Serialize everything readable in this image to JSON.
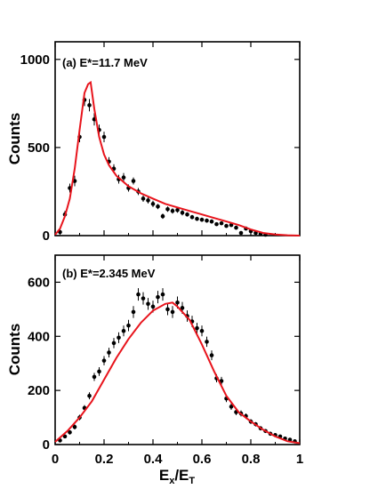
{
  "chart_data": [
    {
      "type": "scatter",
      "panel_label": "(a) E*=11.7 MeV",
      "ylabel": "Counts",
      "xlim": [
        0,
        1
      ],
      "ylim": [
        0,
        1100
      ],
      "xticks": [
        0,
        0.2,
        0.4,
        0.6,
        0.8,
        1
      ],
      "yticks": [
        0,
        500,
        1000
      ],
      "ytick_labels": [
        "0",
        "500",
        "1000"
      ],
      "series": [
        {
          "kind": "points",
          "color": "#000000",
          "x": [
            0.02,
            0.04,
            0.06,
            0.08,
            0.1,
            0.12,
            0.14,
            0.16,
            0.18,
            0.2,
            0.22,
            0.24,
            0.26,
            0.28,
            0.3,
            0.32,
            0.34,
            0.36,
            0.38,
            0.4,
            0.42,
            0.44,
            0.46,
            0.48,
            0.5,
            0.52,
            0.54,
            0.56,
            0.58,
            0.6,
            0.62,
            0.64,
            0.66,
            0.68,
            0.7,
            0.72,
            0.74,
            0.76,
            0.78,
            0.8,
            0.82,
            0.84,
            0.86
          ],
          "y": [
            20,
            120,
            270,
            310,
            560,
            770,
            740,
            660,
            600,
            560,
            420,
            380,
            320,
            330,
            270,
            310,
            250,
            210,
            200,
            180,
            165,
            110,
            150,
            140,
            145,
            130,
            120,
            105,
            95,
            90,
            85,
            80,
            65,
            70,
            55,
            60,
            45,
            15,
            40,
            25,
            15,
            10,
            5
          ],
          "err": [
            15,
            20,
            25,
            30,
            30,
            35,
            35,
            35,
            30,
            30,
            25,
            25,
            25,
            25,
            20,
            20,
            20,
            18,
            18,
            18,
            15,
            15,
            15,
            15,
            15,
            15,
            12,
            12,
            12,
            12,
            12,
            12,
            10,
            10,
            10,
            10,
            10,
            8,
            8,
            8,
            6,
            6,
            5
          ]
        },
        {
          "kind": "line",
          "color": "#e8141c",
          "x": [
            0.0,
            0.02,
            0.04,
            0.06,
            0.08,
            0.1,
            0.12,
            0.135,
            0.145,
            0.16,
            0.18,
            0.2,
            0.22,
            0.25,
            0.3,
            0.35,
            0.4,
            0.45,
            0.5,
            0.55,
            0.6,
            0.65,
            0.7,
            0.75,
            0.8,
            0.85,
            0.9,
            0.95,
            1.0
          ],
          "y": [
            5,
            40,
            110,
            210,
            380,
            600,
            810,
            860,
            870,
            720,
            560,
            460,
            400,
            340,
            280,
            240,
            210,
            180,
            160,
            140,
            120,
            100,
            80,
            60,
            35,
            15,
            6,
            2,
            0
          ]
        }
      ]
    },
    {
      "type": "scatter",
      "panel_label": "(b) E*=2.345 MeV",
      "xlabel_main": "E",
      "xlabel_sub1": "x",
      "xlabel_sep": "/E",
      "xlabel_sub2": "T",
      "ylabel": "Counts",
      "xlim": [
        0,
        1
      ],
      "ylim": [
        0,
        700
      ],
      "xticks": [
        0,
        0.2,
        0.4,
        0.6,
        0.8,
        1
      ],
      "xtick_labels": [
        "0",
        "0.2",
        "0.4",
        "0.6",
        "0.8",
        "1"
      ],
      "yticks": [
        0,
        200,
        400,
        600
      ],
      "ytick_labels": [
        "0",
        "200",
        "400",
        "600"
      ],
      "series": [
        {
          "kind": "points",
          "color": "#000000",
          "x": [
            0.02,
            0.04,
            0.06,
            0.08,
            0.1,
            0.12,
            0.14,
            0.16,
            0.18,
            0.2,
            0.22,
            0.24,
            0.26,
            0.28,
            0.3,
            0.32,
            0.34,
            0.36,
            0.38,
            0.4,
            0.42,
            0.44,
            0.46,
            0.48,
            0.5,
            0.52,
            0.54,
            0.56,
            0.58,
            0.6,
            0.62,
            0.64,
            0.66,
            0.68,
            0.7,
            0.72,
            0.74,
            0.76,
            0.78,
            0.8,
            0.82,
            0.84,
            0.86,
            0.88,
            0.9,
            0.92,
            0.94,
            0.96,
            0.98
          ],
          "y": [
            15,
            30,
            45,
            65,
            100,
            135,
            180,
            250,
            270,
            310,
            340,
            375,
            395,
            420,
            440,
            490,
            555,
            540,
            520,
            510,
            545,
            555,
            500,
            490,
            525,
            505,
            475,
            455,
            430,
            420,
            380,
            330,
            245,
            235,
            170,
            140,
            120,
            115,
            105,
            85,
            75,
            60,
            50,
            40,
            35,
            30,
            22,
            18,
            12
          ],
          "err": [
            5,
            6,
            8,
            9,
            10,
            11,
            13,
            15,
            16,
            17,
            18,
            19,
            20,
            20,
            21,
            22,
            23,
            23,
            22,
            22,
            23,
            23,
            22,
            22,
            22,
            22,
            21,
            21,
            20,
            20,
            19,
            18,
            15,
            15,
            13,
            12,
            11,
            11,
            10,
            9,
            8,
            8,
            7,
            6,
            6,
            5,
            5,
            4,
            3
          ]
        },
        {
          "kind": "line",
          "color": "#e8141c",
          "x": [
            0.0,
            0.05,
            0.1,
            0.15,
            0.2,
            0.25,
            0.3,
            0.35,
            0.4,
            0.45,
            0.48,
            0.5,
            0.55,
            0.6,
            0.65,
            0.7,
            0.75,
            0.8,
            0.85,
            0.9,
            0.95,
            1.0
          ],
          "y": [
            10,
            50,
            100,
            160,
            240,
            320,
            390,
            450,
            495,
            520,
            525,
            510,
            460,
            370,
            270,
            180,
            120,
            85,
            55,
            30,
            12,
            5
          ]
        }
      ]
    }
  ]
}
